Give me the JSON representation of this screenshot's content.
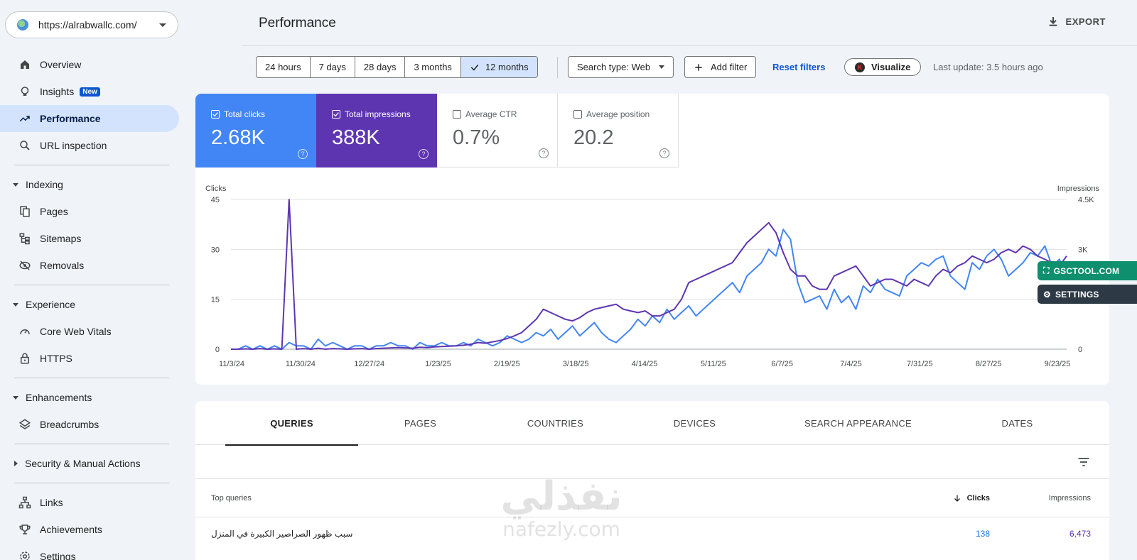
{
  "property": {
    "url": "https://alrabwallc.com/"
  },
  "nav": {
    "overview": "Overview",
    "insights": "Insights",
    "insights_badge": "New",
    "performance": "Performance",
    "url_inspection": "URL inspection",
    "indexing": "Indexing",
    "pages": "Pages",
    "sitemaps": "Sitemaps",
    "removals": "Removals",
    "experience": "Experience",
    "core_web_vitals": "Core Web Vitals",
    "https": "HTTPS",
    "enhancements": "Enhancements",
    "breadcrumbs": "Breadcrumbs",
    "security": "Security & Manual Actions",
    "links": "Links",
    "achievements": "Achievements",
    "settings": "Settings"
  },
  "header": {
    "title": "Performance",
    "export": "EXPORT"
  },
  "filters": {
    "ranges": [
      "24 hours",
      "7 days",
      "28 days",
      "3 months",
      "12 months"
    ],
    "selected_range": "12 months",
    "search_type": "Search type: Web",
    "add_filter": "Add filter",
    "reset": "Reset filters",
    "visualize": "Visualize",
    "visualize_logo": "K",
    "last_update": "Last update: 3.5 hours ago"
  },
  "metrics": [
    {
      "label": "Total clicks",
      "value": "2.68K",
      "checked": true
    },
    {
      "label": "Total impressions",
      "value": "388K",
      "checked": true
    },
    {
      "label": "Average CTR",
      "value": "0.7%",
      "checked": false
    },
    {
      "label": "Average position",
      "value": "20.2",
      "checked": false
    }
  ],
  "colors": {
    "clicks": "#4285f4",
    "impressions": "#5e35b1"
  },
  "chart_data": {
    "type": "line",
    "y_left_label": "Clicks",
    "y_right_label": "Impressions",
    "y_left_ticks": [
      "45",
      "30",
      "15",
      "0"
    ],
    "y_right_ticks": [
      "4.5K",
      "3K",
      "0"
    ],
    "ylim_left": [
      0,
      45
    ],
    "ylim_right": [
      0,
      4500
    ],
    "x_ticks": [
      "11/3/24",
      "11/30/24",
      "12/27/24",
      "1/23/25",
      "2/19/25",
      "3/18/25",
      "4/14/25",
      "5/11/25",
      "6/7/25",
      "7/4/25",
      "7/31/25",
      "8/27/25",
      "9/23/25"
    ],
    "series": [
      {
        "name": "Clicks",
        "axis": "left",
        "values": [
          0,
          0,
          1,
          0,
          1,
          0,
          1,
          0,
          2,
          1,
          1,
          0,
          3,
          1,
          2,
          1,
          0,
          1,
          1,
          0,
          1,
          1,
          2,
          1,
          1,
          0,
          2,
          1,
          1,
          2,
          1,
          1,
          2,
          1,
          3,
          2,
          1,
          2,
          4,
          3,
          2,
          3,
          5,
          4,
          6,
          3,
          5,
          7,
          4,
          6,
          8,
          5,
          3,
          2,
          4,
          6,
          9,
          7,
          10,
          8,
          12,
          9,
          11,
          13,
          10,
          12,
          14,
          16,
          18,
          20,
          17,
          22,
          24,
          26,
          30,
          28,
          36,
          33,
          20,
          14,
          15,
          16,
          12,
          18,
          14,
          16,
          12,
          19,
          17,
          21,
          18,
          17,
          16,
          22,
          24,
          26,
          25,
          27,
          28,
          22,
          20,
          18,
          26,
          24,
          28,
          30,
          27,
          22,
          24,
          26,
          29,
          28,
          31,
          25,
          27,
          22
        ]
      },
      {
        "name": "Impressions",
        "axis": "right",
        "values": [
          0,
          0,
          10,
          0,
          20,
          0,
          10,
          0,
          4500,
          0,
          20,
          0,
          30,
          0,
          20,
          10,
          0,
          10,
          20,
          0,
          20,
          30,
          40,
          50,
          40,
          30,
          60,
          50,
          70,
          80,
          90,
          100,
          120,
          150,
          200,
          180,
          220,
          260,
          320,
          400,
          500,
          700,
          900,
          1200,
          1100,
          1000,
          900,
          850,
          950,
          1100,
          1200,
          1250,
          1300,
          1350,
          1200,
          1150,
          1100,
          1150,
          1000,
          1000,
          1100,
          1200,
          1500,
          2000,
          2100,
          2200,
          2300,
          2400,
          2500,
          2600,
          2900,
          3200,
          3400,
          3600,
          3800,
          3500,
          2900,
          2400,
          2200,
          2200,
          1900,
          1800,
          1800,
          2200,
          2300,
          2400,
          2500,
          2200,
          1900,
          2000,
          2100,
          2100,
          2000,
          1900,
          2100,
          2000,
          1900,
          2200,
          2400,
          2300,
          2500,
          2600,
          2800,
          2700,
          2600,
          2700,
          2900,
          3000,
          2900,
          3100,
          3000,
          2800,
          2700,
          2600,
          2500,
          2800
        ]
      }
    ]
  },
  "floating": {
    "gsc": "GSCTOOL.COM",
    "settings": "SETTINGS"
  },
  "tabs": [
    "QUERIES",
    "PAGES",
    "COUNTRIES",
    "DEVICES",
    "SEARCH APPEARANCE",
    "DATES"
  ],
  "table": {
    "col_query": "Top queries",
    "col_clicks": "Clicks",
    "col_impressions": "Impressions",
    "rows": [
      {
        "query": "سبب ظهور الصراصير الكبيرة في المنزل",
        "clicks": "138",
        "impressions": "6,473"
      }
    ]
  },
  "watermark": {
    "arabic": "نفذلي",
    "latin": "nafezly.com"
  }
}
